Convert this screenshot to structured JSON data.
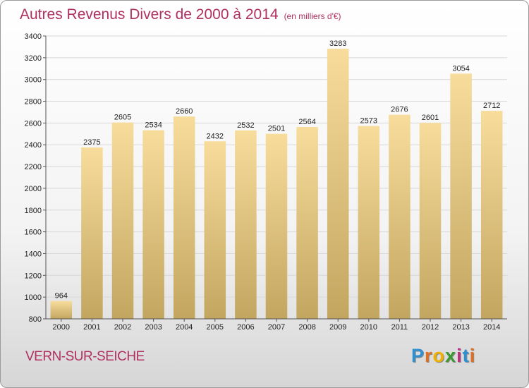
{
  "header": {
    "title": "Autres Revenus Divers de 2000 à 2014",
    "unit": "(en milliers d'€)"
  },
  "footer": {
    "place": "VERN-SUR-SEICHE",
    "logo": [
      "P",
      "r",
      "o",
      "x",
      "i",
      "t",
      "i"
    ],
    "logo_colors": [
      "#2f8fd0",
      "#e07020",
      "#f0b000",
      "#3a9a30",
      "#c03080",
      "#2f8fd0",
      "#e07020"
    ]
  },
  "chart_data": {
    "type": "bar",
    "categories": [
      "2000",
      "2001",
      "2002",
      "2003",
      "2004",
      "2005",
      "2006",
      "2007",
      "2008",
      "2009",
      "2010",
      "2011",
      "2012",
      "2013",
      "2014"
    ],
    "values": [
      964,
      2375,
      2605,
      2534,
      2660,
      2432,
      2532,
      2501,
      2564,
      3283,
      2573,
      2676,
      2601,
      3054,
      2712
    ],
    "ylim": [
      800,
      3400
    ],
    "yticks": [
      800,
      1000,
      1200,
      1400,
      1600,
      1800,
      2000,
      2200,
      2400,
      2600,
      2800,
      3000,
      3200,
      3400
    ],
    "grid": true,
    "bar_color_top": "#f7dc9c",
    "bar_color_bottom": "#c2a660"
  }
}
